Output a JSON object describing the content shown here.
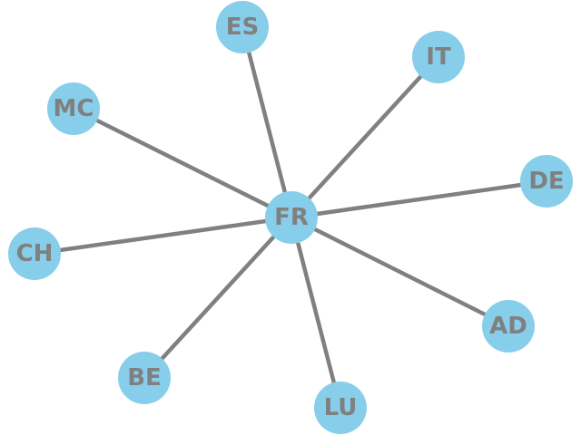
{
  "graph": {
    "center": "FR",
    "nodes": [
      "FR",
      "ES",
      "IT",
      "MC",
      "DE",
      "CH",
      "AD",
      "BE",
      "LU"
    ],
    "edges": [
      [
        "FR",
        "ES"
      ],
      [
        "FR",
        "IT"
      ],
      [
        "FR",
        "MC"
      ],
      [
        "FR",
        "DE"
      ],
      [
        "FR",
        "CH"
      ],
      [
        "FR",
        "AD"
      ],
      [
        "FR",
        "BE"
      ],
      [
        "FR",
        "LU"
      ]
    ],
    "colors": {
      "node_fill": "#87ceeb",
      "edge": "#808080",
      "label": "#808080"
    }
  }
}
